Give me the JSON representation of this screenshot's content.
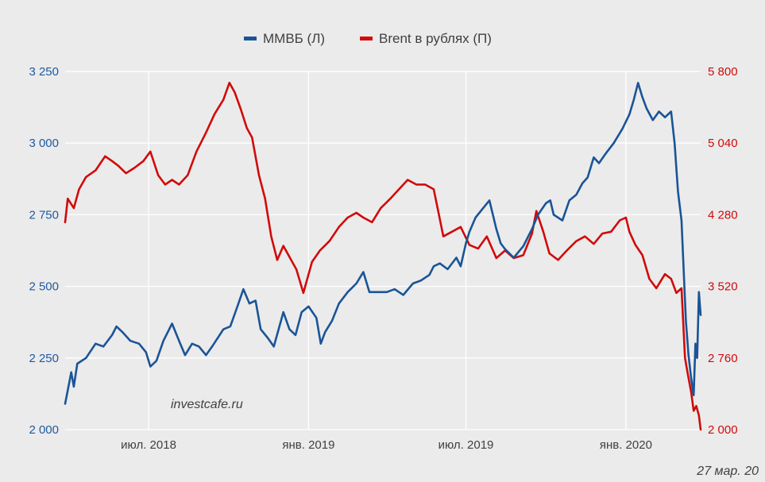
{
  "chart_data": {
    "type": "line",
    "legend": {
      "placement": "top-center"
    },
    "grid": true,
    "colors": {
      "left_series": "#1a5497",
      "right_series": "#d10a0a",
      "background": "#ebebeb",
      "grid": "#ffffff"
    },
    "x_ticks": [
      {
        "date": "2018-07-01",
        "label": "июл. 2018"
      },
      {
        "date": "2019-01-01",
        "label": "янв. 2019"
      },
      {
        "date": "2019-07-01",
        "label": "июл. 2019"
      },
      {
        "date": "2020-01-01",
        "label": "янв. 2020"
      }
    ],
    "xlim": [
      "2018-03-27",
      "2020-03-27"
    ],
    "left_axis": {
      "ylim": [
        2000,
        3250
      ],
      "ticks": [
        2000,
        2250,
        2500,
        2750,
        3000,
        3250
      ],
      "tick_labels": [
        "2 000",
        "2 250",
        "2 500",
        "2 750",
        "3 000",
        "3 250"
      ]
    },
    "right_axis": {
      "ylim": [
        2000,
        5800
      ],
      "ticks": [
        2000,
        2760,
        3520,
        4280,
        5040,
        5800
      ],
      "tick_labels": [
        "2 000",
        "2 760",
        "3 520",
        "4 280",
        "5 040",
        "5 800"
      ]
    },
    "series": [
      {
        "name": "ММВБ (Л)",
        "axis": "left",
        "points": [
          [
            "2018-03-27",
            2090
          ],
          [
            "2018-04-03",
            2200
          ],
          [
            "2018-04-06",
            2150
          ],
          [
            "2018-04-10",
            2230
          ],
          [
            "2018-04-20",
            2250
          ],
          [
            "2018-05-01",
            2300
          ],
          [
            "2018-05-10",
            2290
          ],
          [
            "2018-05-20",
            2330
          ],
          [
            "2018-05-25",
            2360
          ],
          [
            "2018-06-01",
            2340
          ],
          [
            "2018-06-10",
            2310
          ],
          [
            "2018-06-20",
            2300
          ],
          [
            "2018-06-28",
            2270
          ],
          [
            "2018-07-03",
            2220
          ],
          [
            "2018-07-10",
            2240
          ],
          [
            "2018-07-18",
            2310
          ],
          [
            "2018-07-28",
            2370
          ],
          [
            "2018-08-05",
            2310
          ],
          [
            "2018-08-12",
            2260
          ],
          [
            "2018-08-20",
            2300
          ],
          [
            "2018-08-28",
            2290
          ],
          [
            "2018-09-05",
            2260
          ],
          [
            "2018-09-12",
            2290
          ],
          [
            "2018-09-25",
            2350
          ],
          [
            "2018-10-03",
            2360
          ],
          [
            "2018-10-10",
            2420
          ],
          [
            "2018-10-18",
            2490
          ],
          [
            "2018-10-25",
            2440
          ],
          [
            "2018-11-01",
            2450
          ],
          [
            "2018-11-07",
            2350
          ],
          [
            "2018-11-15",
            2320
          ],
          [
            "2018-11-22",
            2290
          ],
          [
            "2018-12-03",
            2410
          ],
          [
            "2018-12-10",
            2350
          ],
          [
            "2018-12-17",
            2330
          ],
          [
            "2018-12-24",
            2410
          ],
          [
            "2019-01-01",
            2430
          ],
          [
            "2019-01-10",
            2390
          ],
          [
            "2019-01-15",
            2300
          ],
          [
            "2019-01-20",
            2340
          ],
          [
            "2019-01-28",
            2380
          ],
          [
            "2019-02-05",
            2440
          ],
          [
            "2019-02-15",
            2480
          ],
          [
            "2019-02-25",
            2510
          ],
          [
            "2019-03-05",
            2550
          ],
          [
            "2019-03-12",
            2480
          ],
          [
            "2019-03-20",
            2480
          ],
          [
            "2019-04-01",
            2480
          ],
          [
            "2019-04-10",
            2490
          ],
          [
            "2019-04-20",
            2470
          ],
          [
            "2019-05-01",
            2510
          ],
          [
            "2019-05-10",
            2520
          ],
          [
            "2019-05-20",
            2540
          ],
          [
            "2019-05-25",
            2570
          ],
          [
            "2019-06-01",
            2580
          ],
          [
            "2019-06-10",
            2560
          ],
          [
            "2019-06-20",
            2600
          ],
          [
            "2019-06-25",
            2570
          ],
          [
            "2019-07-01",
            2650
          ],
          [
            "2019-07-05",
            2690
          ],
          [
            "2019-07-12",
            2740
          ],
          [
            "2019-07-20",
            2770
          ],
          [
            "2019-07-28",
            2800
          ],
          [
            "2019-08-05",
            2700
          ],
          [
            "2019-08-10",
            2650
          ],
          [
            "2019-08-15",
            2630
          ],
          [
            "2019-08-25",
            2600
          ],
          [
            "2019-09-05",
            2640
          ],
          [
            "2019-09-15",
            2700
          ],
          [
            "2019-09-22",
            2750
          ],
          [
            "2019-10-01",
            2790
          ],
          [
            "2019-10-06",
            2800
          ],
          [
            "2019-10-10",
            2750
          ],
          [
            "2019-10-20",
            2730
          ],
          [
            "2019-10-28",
            2800
          ],
          [
            "2019-11-05",
            2820
          ],
          [
            "2019-11-12",
            2860
          ],
          [
            "2019-11-18",
            2880
          ],
          [
            "2019-11-25",
            2950
          ],
          [
            "2019-12-01",
            2930
          ],
          [
            "2019-12-08",
            2960
          ],
          [
            "2019-12-18",
            3000
          ],
          [
            "2019-12-28",
            3050
          ],
          [
            "2020-01-05",
            3100
          ],
          [
            "2020-01-10",
            3150
          ],
          [
            "2020-01-15",
            3210
          ],
          [
            "2020-01-20",
            3160
          ],
          [
            "2020-01-25",
            3120
          ],
          [
            "2020-02-01",
            3080
          ],
          [
            "2020-02-08",
            3110
          ],
          [
            "2020-02-15",
            3090
          ],
          [
            "2020-02-22",
            3110
          ],
          [
            "2020-02-26",
            3000
          ],
          [
            "2020-03-01",
            2830
          ],
          [
            "2020-03-05",
            2730
          ],
          [
            "2020-03-10",
            2380
          ],
          [
            "2020-03-13",
            2260
          ],
          [
            "2020-03-16",
            2180
          ],
          [
            "2020-03-19",
            2120
          ],
          [
            "2020-03-21",
            2300
          ],
          [
            "2020-03-23",
            2250
          ],
          [
            "2020-03-25",
            2480
          ],
          [
            "2020-03-27",
            2400
          ]
        ]
      },
      {
        "name": "Brent в рублях (П)",
        "axis": "right",
        "points": [
          [
            "2018-03-27",
            4200
          ],
          [
            "2018-03-30",
            4450
          ],
          [
            "2018-04-06",
            4350
          ],
          [
            "2018-04-12",
            4550
          ],
          [
            "2018-04-20",
            4680
          ],
          [
            "2018-05-01",
            4750
          ],
          [
            "2018-05-12",
            4900
          ],
          [
            "2018-05-20",
            4850
          ],
          [
            "2018-05-27",
            4800
          ],
          [
            "2018-06-05",
            4720
          ],
          [
            "2018-06-15",
            4780
          ],
          [
            "2018-06-25",
            4850
          ],
          [
            "2018-07-03",
            4950
          ],
          [
            "2018-07-12",
            4700
          ],
          [
            "2018-07-20",
            4600
          ],
          [
            "2018-07-28",
            4650
          ],
          [
            "2018-08-05",
            4600
          ],
          [
            "2018-08-15",
            4700
          ],
          [
            "2018-08-25",
            4950
          ],
          [
            "2018-09-05",
            5150
          ],
          [
            "2018-09-15",
            5350
          ],
          [
            "2018-09-25",
            5500
          ],
          [
            "2018-10-02",
            5680
          ],
          [
            "2018-10-08",
            5580
          ],
          [
            "2018-10-15",
            5400
          ],
          [
            "2018-10-22",
            5200
          ],
          [
            "2018-10-28",
            5100
          ],
          [
            "2018-11-05",
            4700
          ],
          [
            "2018-11-12",
            4450
          ],
          [
            "2018-11-19",
            4050
          ],
          [
            "2018-11-26",
            3800
          ],
          [
            "2018-12-03",
            3950
          ],
          [
            "2018-12-12",
            3800
          ],
          [
            "2018-12-18",
            3700
          ],
          [
            "2018-12-26",
            3450
          ],
          [
            "2019-01-05",
            3780
          ],
          [
            "2019-01-14",
            3900
          ],
          [
            "2019-01-25",
            4000
          ],
          [
            "2019-02-05",
            4150
          ],
          [
            "2019-02-15",
            4250
          ],
          [
            "2019-02-25",
            4300
          ],
          [
            "2019-03-05",
            4250
          ],
          [
            "2019-03-15",
            4200
          ],
          [
            "2019-03-25",
            4350
          ],
          [
            "2019-04-05",
            4450
          ],
          [
            "2019-04-15",
            4550
          ],
          [
            "2019-04-25",
            4650
          ],
          [
            "2019-05-05",
            4600
          ],
          [
            "2019-05-15",
            4600
          ],
          [
            "2019-05-25",
            4550
          ],
          [
            "2019-06-05",
            4050
          ],
          [
            "2019-06-15",
            4100
          ],
          [
            "2019-06-25",
            4150
          ],
          [
            "2019-07-05",
            3960
          ],
          [
            "2019-07-15",
            3920
          ],
          [
            "2019-07-25",
            4050
          ],
          [
            "2019-08-05",
            3820
          ],
          [
            "2019-08-15",
            3900
          ],
          [
            "2019-08-25",
            3820
          ],
          [
            "2019-09-05",
            3850
          ],
          [
            "2019-09-15",
            4080
          ],
          [
            "2019-09-20",
            4320
          ],
          [
            "2019-09-28",
            4100
          ],
          [
            "2019-10-05",
            3870
          ],
          [
            "2019-10-15",
            3800
          ],
          [
            "2019-10-25",
            3900
          ],
          [
            "2019-11-05",
            4000
          ],
          [
            "2019-11-15",
            4050
          ],
          [
            "2019-11-25",
            3970
          ],
          [
            "2019-12-05",
            4080
          ],
          [
            "2019-12-15",
            4100
          ],
          [
            "2019-12-25",
            4220
          ],
          [
            "2020-01-01",
            4250
          ],
          [
            "2020-01-05",
            4100
          ],
          [
            "2020-01-12",
            3960
          ],
          [
            "2020-01-20",
            3850
          ],
          [
            "2020-01-28",
            3600
          ],
          [
            "2020-02-05",
            3500
          ],
          [
            "2020-02-15",
            3650
          ],
          [
            "2020-02-22",
            3600
          ],
          [
            "2020-02-28",
            3450
          ],
          [
            "2020-03-05",
            3500
          ],
          [
            "2020-03-09",
            2760
          ],
          [
            "2020-03-12",
            2600
          ],
          [
            "2020-03-16",
            2400
          ],
          [
            "2020-03-19",
            2200
          ],
          [
            "2020-03-22",
            2250
          ],
          [
            "2020-03-25",
            2150
          ],
          [
            "2020-03-27",
            2000
          ]
        ]
      }
    ],
    "annotations": [
      "investcafe.ru",
      "27 мар. 20"
    ]
  }
}
